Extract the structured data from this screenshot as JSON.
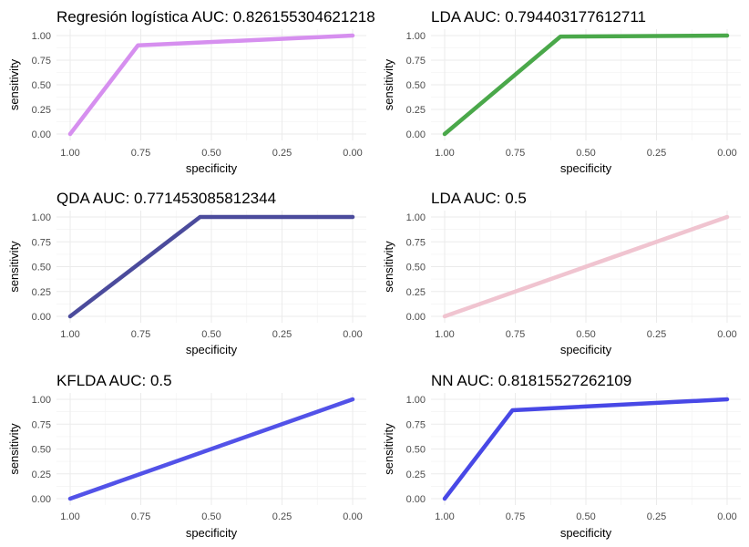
{
  "chart_data": [
    {
      "type": "line",
      "title": "Regresión logística AUC: 0.826155304621218",
      "xlabel": "specificity",
      "ylabel": "sensitivity",
      "x_ticks": [
        "1.00",
        "0.75",
        "0.50",
        "0.25",
        "0.00"
      ],
      "y_ticks": [
        "0.00",
        "0.25",
        "0.50",
        "0.75",
        "1.00"
      ],
      "xlim": [
        1.0,
        0.0
      ],
      "ylim": [
        0.0,
        1.0
      ],
      "x_reversed": true,
      "grid": true,
      "color": "#d68fef",
      "series": [
        {
          "x": [
            1.0,
            0.76,
            0.0
          ],
          "y": [
            0.0,
            0.9,
            1.0
          ]
        }
      ]
    },
    {
      "type": "line",
      "title": "LDA AUC: 0.794403177612711",
      "xlabel": "specificity",
      "ylabel": "sensitivity",
      "x_ticks": [
        "1.00",
        "0.75",
        "0.50",
        "0.25",
        "0.00"
      ],
      "y_ticks": [
        "0.00",
        "0.25",
        "0.50",
        "0.75",
        "1.00"
      ],
      "xlim": [
        1.0,
        0.0
      ],
      "ylim": [
        0.0,
        1.0
      ],
      "x_reversed": true,
      "grid": true,
      "color": "#4aa84a",
      "series": [
        {
          "x": [
            1.0,
            0.59,
            0.0
          ],
          "y": [
            0.0,
            0.99,
            1.0
          ]
        }
      ]
    },
    {
      "type": "line",
      "title": "QDA AUC: 0.771453085812344",
      "xlabel": "specificity",
      "ylabel": "sensitivity",
      "x_ticks": [
        "1.00",
        "0.75",
        "0.50",
        "0.25",
        "0.00"
      ],
      "y_ticks": [
        "0.00",
        "0.25",
        "0.50",
        "0.75",
        "1.00"
      ],
      "xlim": [
        1.0,
        0.0
      ],
      "ylim": [
        0.0,
        1.0
      ],
      "x_reversed": true,
      "grid": true,
      "color": "#4b4b9c",
      "series": [
        {
          "x": [
            1.0,
            0.54,
            0.0
          ],
          "y": [
            0.0,
            1.0,
            1.0
          ]
        }
      ]
    },
    {
      "type": "line",
      "title": "LDA AUC: 0.5",
      "xlabel": "specificity",
      "ylabel": "sensitivity",
      "x_ticks": [
        "1.00",
        "0.75",
        "0.50",
        "0.25",
        "0.00"
      ],
      "y_ticks": [
        "0.00",
        "0.25",
        "0.50",
        "0.75",
        "1.00"
      ],
      "xlim": [
        1.0,
        0.0
      ],
      "ylim": [
        0.0,
        1.0
      ],
      "x_reversed": true,
      "grid": true,
      "color": "#f0c4d0",
      "series": [
        {
          "x": [
            1.0,
            0.0
          ],
          "y": [
            0.0,
            1.0
          ]
        }
      ]
    },
    {
      "type": "line",
      "title": "KFLDA AUC: 0.5",
      "xlabel": "specificity",
      "ylabel": "sensitivity",
      "x_ticks": [
        "1.00",
        "0.75",
        "0.50",
        "0.25",
        "0.00"
      ],
      "y_ticks": [
        "0.00",
        "0.25",
        "0.50",
        "0.75",
        "1.00"
      ],
      "xlim": [
        1.0,
        0.0
      ],
      "ylim": [
        0.0,
        1.0
      ],
      "x_reversed": true,
      "grid": true,
      "color": "#5252e8",
      "series": [
        {
          "x": [
            1.0,
            0.0
          ],
          "y": [
            0.0,
            1.0
          ]
        }
      ]
    },
    {
      "type": "line",
      "title": "NN AUC: 0.81815527262109",
      "xlabel": "specificity",
      "ylabel": "sensitivity",
      "x_ticks": [
        "1.00",
        "0.75",
        "0.50",
        "0.25",
        "0.00"
      ],
      "y_ticks": [
        "0.00",
        "0.25",
        "0.50",
        "0.75",
        "1.00"
      ],
      "xlim": [
        1.0,
        0.0
      ],
      "ylim": [
        0.0,
        1.0
      ],
      "x_reversed": true,
      "grid": true,
      "color": "#4848e6",
      "series": [
        {
          "x": [
            1.0,
            0.76,
            0.0
          ],
          "y": [
            0.0,
            0.89,
            1.0
          ]
        }
      ]
    }
  ]
}
